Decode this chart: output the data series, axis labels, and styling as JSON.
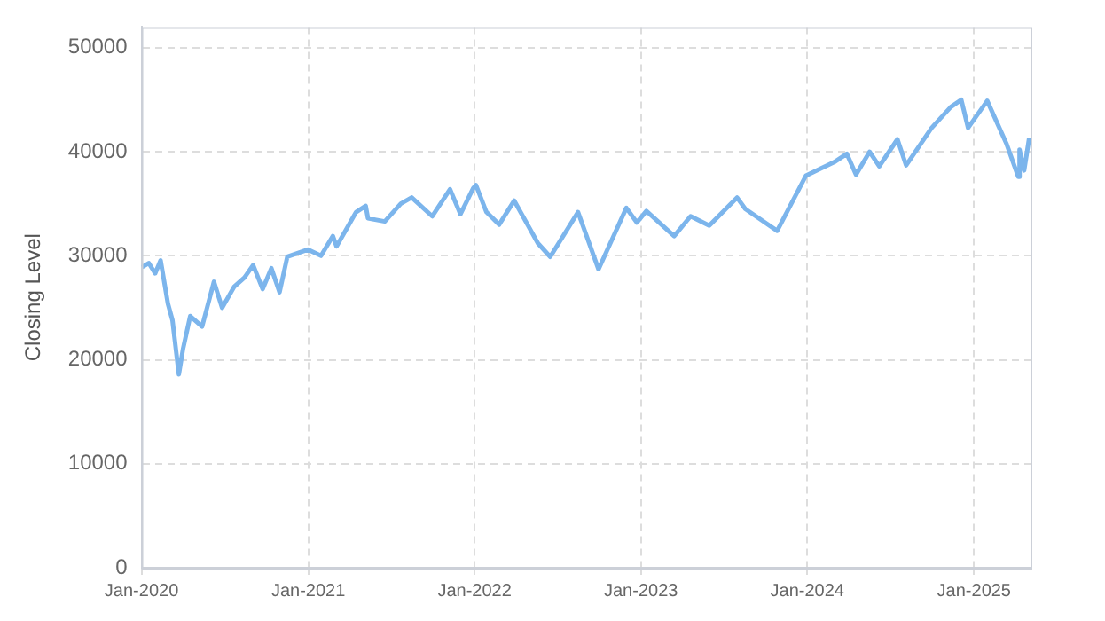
{
  "chart_data": {
    "type": "line",
    "ylabel": "Closing Level",
    "x": [
      "2020-01-02",
      "2020-01-17",
      "2020-01-31",
      "2020-02-12",
      "2020-02-28",
      "2020-03-09",
      "2020-03-23",
      "2020-04-01",
      "2020-04-17",
      "2020-05-13",
      "2020-06-08",
      "2020-06-26",
      "2020-07-22",
      "2020-08-14",
      "2020-09-02",
      "2020-09-23",
      "2020-10-12",
      "2020-10-30",
      "2020-11-16",
      "2020-12-31",
      "2021-01-29",
      "2021-02-24",
      "2021-03-04",
      "2021-04-16",
      "2021-05-07",
      "2021-05-12",
      "2021-06-18",
      "2021-07-23",
      "2021-08-16",
      "2021-09-30",
      "2021-11-08",
      "2021-12-01",
      "2021-12-29",
      "2022-01-04",
      "2022-01-27",
      "2022-02-24",
      "2022-03-29",
      "2022-05-20",
      "2022-06-16",
      "2022-08-16",
      "2022-09-30",
      "2022-11-30",
      "2022-12-23",
      "2023-01-13",
      "2023-03-15",
      "2023-04-20",
      "2023-05-31",
      "2023-07-31",
      "2023-08-18",
      "2023-10-27",
      "2023-12-29",
      "2024-02-29",
      "2024-03-28",
      "2024-04-17",
      "2024-05-17",
      "2024-06-07",
      "2024-07-17",
      "2024-08-05",
      "2024-09-30",
      "2024-11-11",
      "2024-12-04",
      "2024-12-19",
      "2025-01-30",
      "2025-03-13",
      "2025-04-08",
      "2025-04-11",
      "2025-04-21",
      "2025-05-02"
    ],
    "series": [
      {
        "color": "#7cb5ec",
        "values": [
          28900,
          29300,
          28300,
          29550,
          25400,
          23800,
          18600,
          21000,
          24200,
          23200,
          27500,
          25000,
          27000,
          27900,
          29100,
          26800,
          28800,
          26500,
          29900,
          30600,
          30000,
          31900,
          30900,
          34200,
          34800,
          33600,
          33300,
          35000,
          35600,
          33800,
          36400,
          34000,
          36500,
          36800,
          34200,
          33000,
          35300,
          31200,
          29900,
          34200,
          28700,
          34600,
          33200,
          34300,
          31900,
          33800,
          32900,
          35600,
          34500,
          32400,
          37700,
          39000,
          39800,
          37800,
          40000,
          38600,
          41200,
          38700,
          42300,
          44300,
          45000,
          42300,
          44900,
          40800,
          37600,
          40200,
          38200,
          41300
        ]
      }
    ],
    "xlim": [
      "2020-01-01",
      "2025-05-05"
    ],
    "xticks": [
      {
        "value": "2020-01-01",
        "label": "Jan-2020"
      },
      {
        "value": "2021-01-01",
        "label": "Jan-2021"
      },
      {
        "value": "2022-01-01",
        "label": "Jan-2022"
      },
      {
        "value": "2023-01-01",
        "label": "Jan-2023"
      },
      {
        "value": "2024-01-01",
        "label": "Jan-2024"
      },
      {
        "value": "2025-01-01",
        "label": "Jan-2025"
      }
    ],
    "ylim": [
      0,
      52000
    ],
    "yticks": [
      0,
      10000,
      20000,
      30000,
      40000,
      50000
    ],
    "grid": true,
    "legend": false,
    "marker": "none",
    "line_style": "solid"
  }
}
